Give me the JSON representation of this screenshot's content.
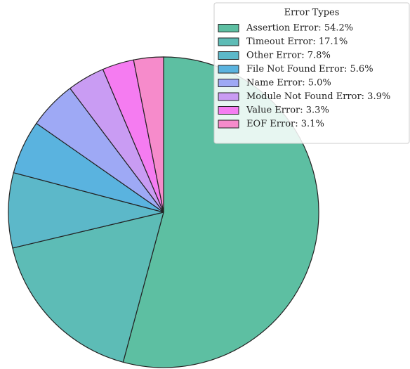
{
  "chart_data": {
    "type": "pie",
    "legend_title": "Error Types",
    "categories": [
      "Assertion Error: 54.2%",
      "Timeout Error: 17.1%",
      "Other Error: 7.8%",
      "File Not Found Error: 5.6%",
      "Name Error: 5.0%",
      "Module Not Found Error: 3.9%",
      "Value Error: 3.3%",
      "EOF Error: 3.1%"
    ],
    "values": [
      54.2,
      17.1,
      7.8,
      5.6,
      5.0,
      3.9,
      3.3,
      3.1
    ],
    "colors": [
      "#5dbfa2",
      "#5dbcb6",
      "#5cb8c9",
      "#5ab3df",
      "#9ea9f5",
      "#c99cf3",
      "#f57cf1",
      "#f68bcb"
    ],
    "legend": "upper right"
  }
}
